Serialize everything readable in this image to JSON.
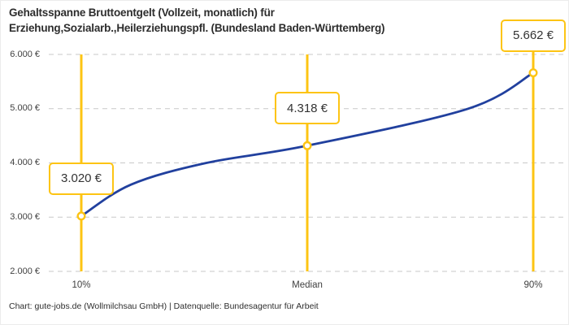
{
  "header": {
    "title_line1": "Gehaltsspanne Bruttoentgelt (Vollzeit, monatlich) für",
    "title_line2": "Erziehung,Sozialarb.,Heilerziehungspfl. (Bundesland Baden-Württemberg)"
  },
  "footer": {
    "credit": "Chart: gute-jobs.de (Wollmilchsau GmbH) | Datenquelle: Bundesagentur für Arbeit"
  },
  "colors": {
    "accent_yellow": "#fdc413",
    "line_blue": "#21409e",
    "grid_gray": "#c9c9c9",
    "marker_fill": "#ffffff"
  },
  "chart_data": {
    "type": "line",
    "title": "Gehaltsspanne Bruttoentgelt (Vollzeit, monatlich) für Erziehung,Sozialarb.,Heilerziehungspfl. (Bundesland Baden-Württemberg)",
    "categories": [
      "10%",
      "Median",
      "90%"
    ],
    "values": [
      3020,
      4318,
      5662
    ],
    "point_labels": [
      "3.020 €",
      "4.318 €",
      "5.662 €"
    ],
    "y_ticks": [
      {
        "value": 6000,
        "label": "6.000 €"
      },
      {
        "value": 5000,
        "label": "5.000 €"
      },
      {
        "value": 4000,
        "label": "4.000 €"
      },
      {
        "value": 3000,
        "label": "3.000 €"
      },
      {
        "value": 2000,
        "label": "2.000 €"
      }
    ],
    "ylim": [
      2000,
      6000
    ],
    "grid": "horizontal-dashed",
    "legend": "none",
    "curve_waypoints": [
      {
        "x_fraction": 0.0,
        "value": 3020
      },
      {
        "x_fraction": 0.11,
        "value": 3600
      },
      {
        "x_fraction": 0.277,
        "value": 4000
      },
      {
        "x_fraction": 0.5,
        "value": 4318
      },
      {
        "x_fraction": 0.856,
        "value": 5000
      },
      {
        "x_fraction": 1.0,
        "value": 5662
      }
    ]
  }
}
